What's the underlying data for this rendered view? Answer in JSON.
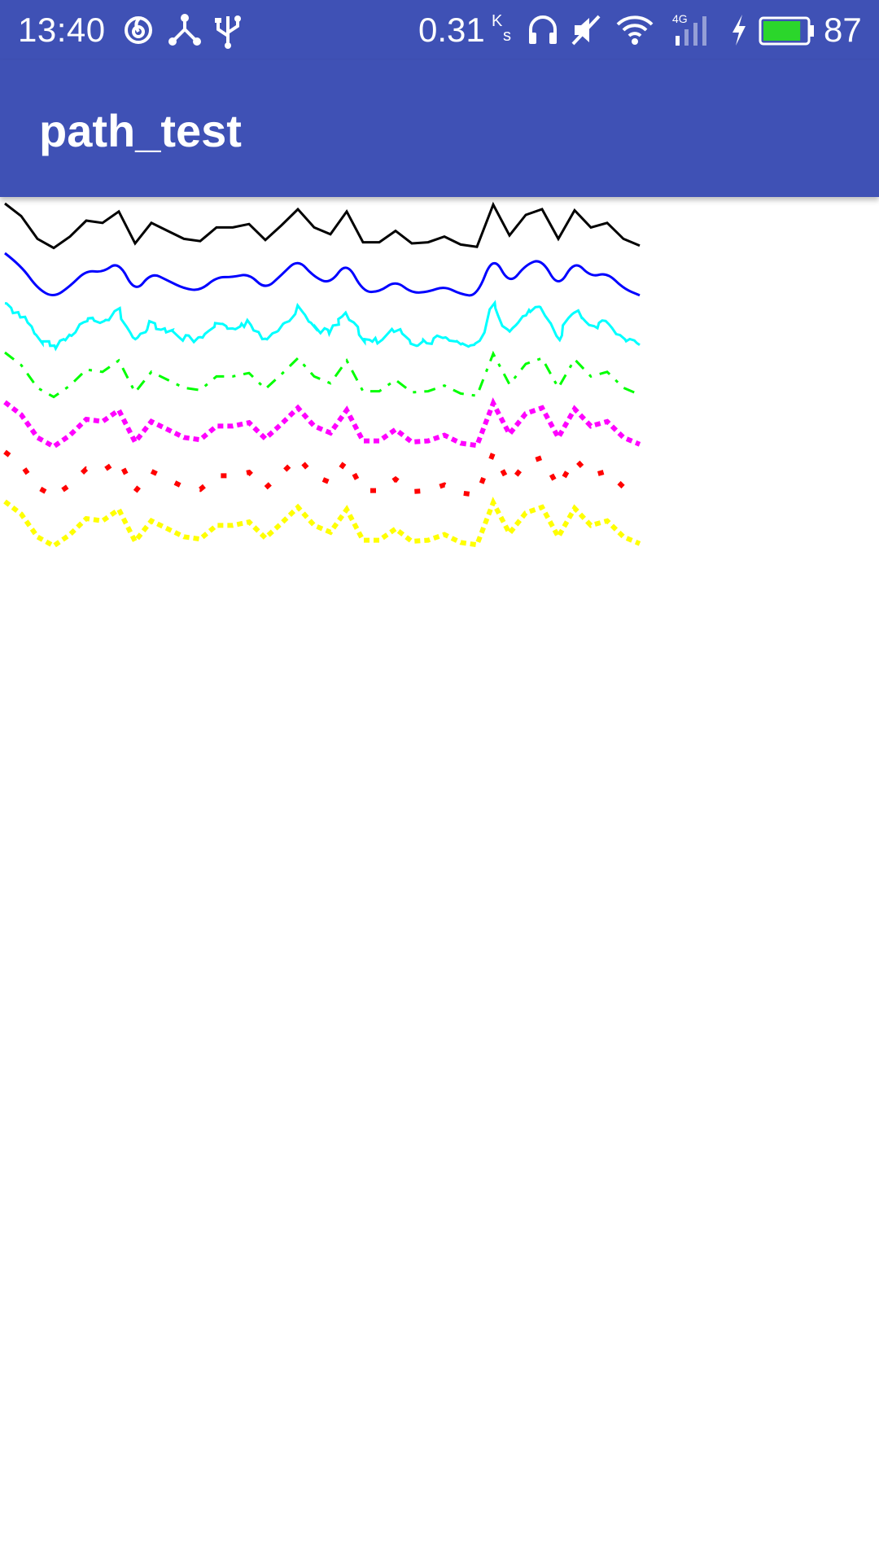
{
  "status_bar": {
    "time": "13:40",
    "left_icons": [
      "netease-music-icon",
      "share-icon",
      "usb-icon"
    ],
    "net_rate": "0.31",
    "net_rate_unit_top": "K",
    "net_rate_unit_bottom": "s",
    "right_icons": [
      "headphones-icon",
      "mute-icon",
      "wifi-icon",
      "signal-4g-icon",
      "charging-icon",
      "battery-icon"
    ],
    "signal_label": "4G",
    "battery_percent": "87",
    "battery_level": 0.87,
    "battery_color": "#2bd62b"
  },
  "app_bar": {
    "title": "path_test",
    "color": "#3f51b5"
  },
  "path_samples": {
    "points": [
      0,
      11,
      31,
      39,
      29,
      15,
      17,
      7,
      35,
      17,
      24,
      31,
      33,
      21,
      21,
      18,
      32,
      19,
      5,
      21,
      27,
      7,
      34,
      34,
      24,
      35,
      34,
      29,
      36,
      38,
      1,
      28,
      10,
      5,
      31,
      6,
      21,
      17,
      31,
      37
    ],
    "lines": [
      {
        "name": "path-line-solid",
        "color": "#000000",
        "effect": "none"
      },
      {
        "name": "path-line-corner",
        "color": "#0000ff",
        "effect": "corner"
      },
      {
        "name": "path-line-discrete",
        "color": "#00ffff",
        "effect": "discrete"
      },
      {
        "name": "path-line-dash-dot",
        "color": "#00ff00",
        "effect": "dash-dot"
      },
      {
        "name": "path-line-dotted-dense",
        "color": "#ff00ff",
        "effect": "dash-dense"
      },
      {
        "name": "path-line-dashed-sparse",
        "color": "#ff0000",
        "effect": "dash-sparse"
      },
      {
        "name": "path-line-dotted",
        "color": "#ffff00",
        "effect": "dash-dense"
      }
    ]
  }
}
